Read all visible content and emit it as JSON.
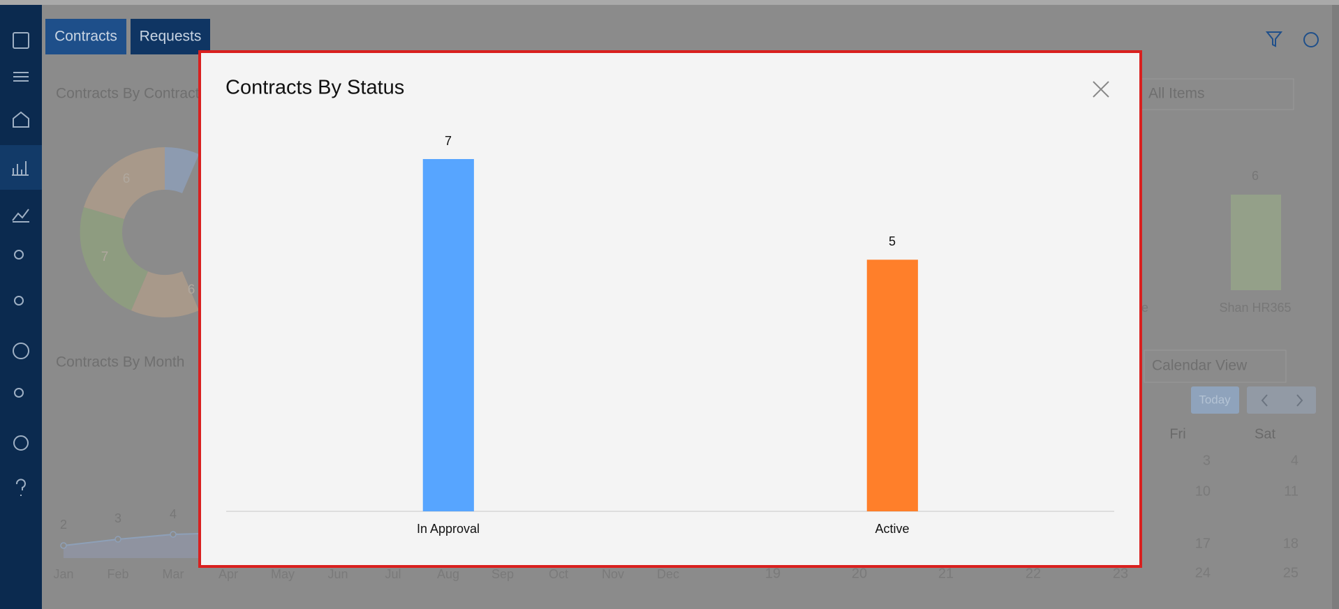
{
  "background": {
    "tabs": [
      "Contracts",
      "Requests"
    ],
    "widgets": {
      "contract_type_title": "Contracts By Contract",
      "status_filter": "All Items",
      "month_title": "Contracts By Month",
      "calendar_view": "Calendar View",
      "today": "Today"
    },
    "donut_labels": [
      "6",
      "7",
      "6"
    ],
    "month_labels": [
      "Jan",
      "Feb",
      "Mar",
      "Apr",
      "May",
      "Jun",
      "Jul",
      "Aug",
      "Sep",
      "Oct",
      "Nov",
      "Dec"
    ],
    "month_point_labels": [
      "2",
      "3",
      "4"
    ],
    "owner_bar": {
      "value": "6",
      "label": "Shan HR365",
      "clipped_label": "e"
    },
    "calendar": {
      "weekdays": [
        "Fri",
        "Sat"
      ],
      "right_days": [
        "3",
        "4",
        "10",
        "11",
        "17",
        "18",
        "24",
        "25"
      ],
      "bottom_days": [
        "19",
        "20",
        "21",
        "22",
        "23"
      ]
    }
  },
  "chart_data": {
    "type": "bar",
    "title": "Contracts By Status",
    "categories": [
      "In Approval",
      "Active"
    ],
    "values": [
      7,
      5
    ],
    "colors": [
      "#57a5ff",
      "#ff7f2a"
    ],
    "ylim": [
      0,
      7
    ]
  }
}
